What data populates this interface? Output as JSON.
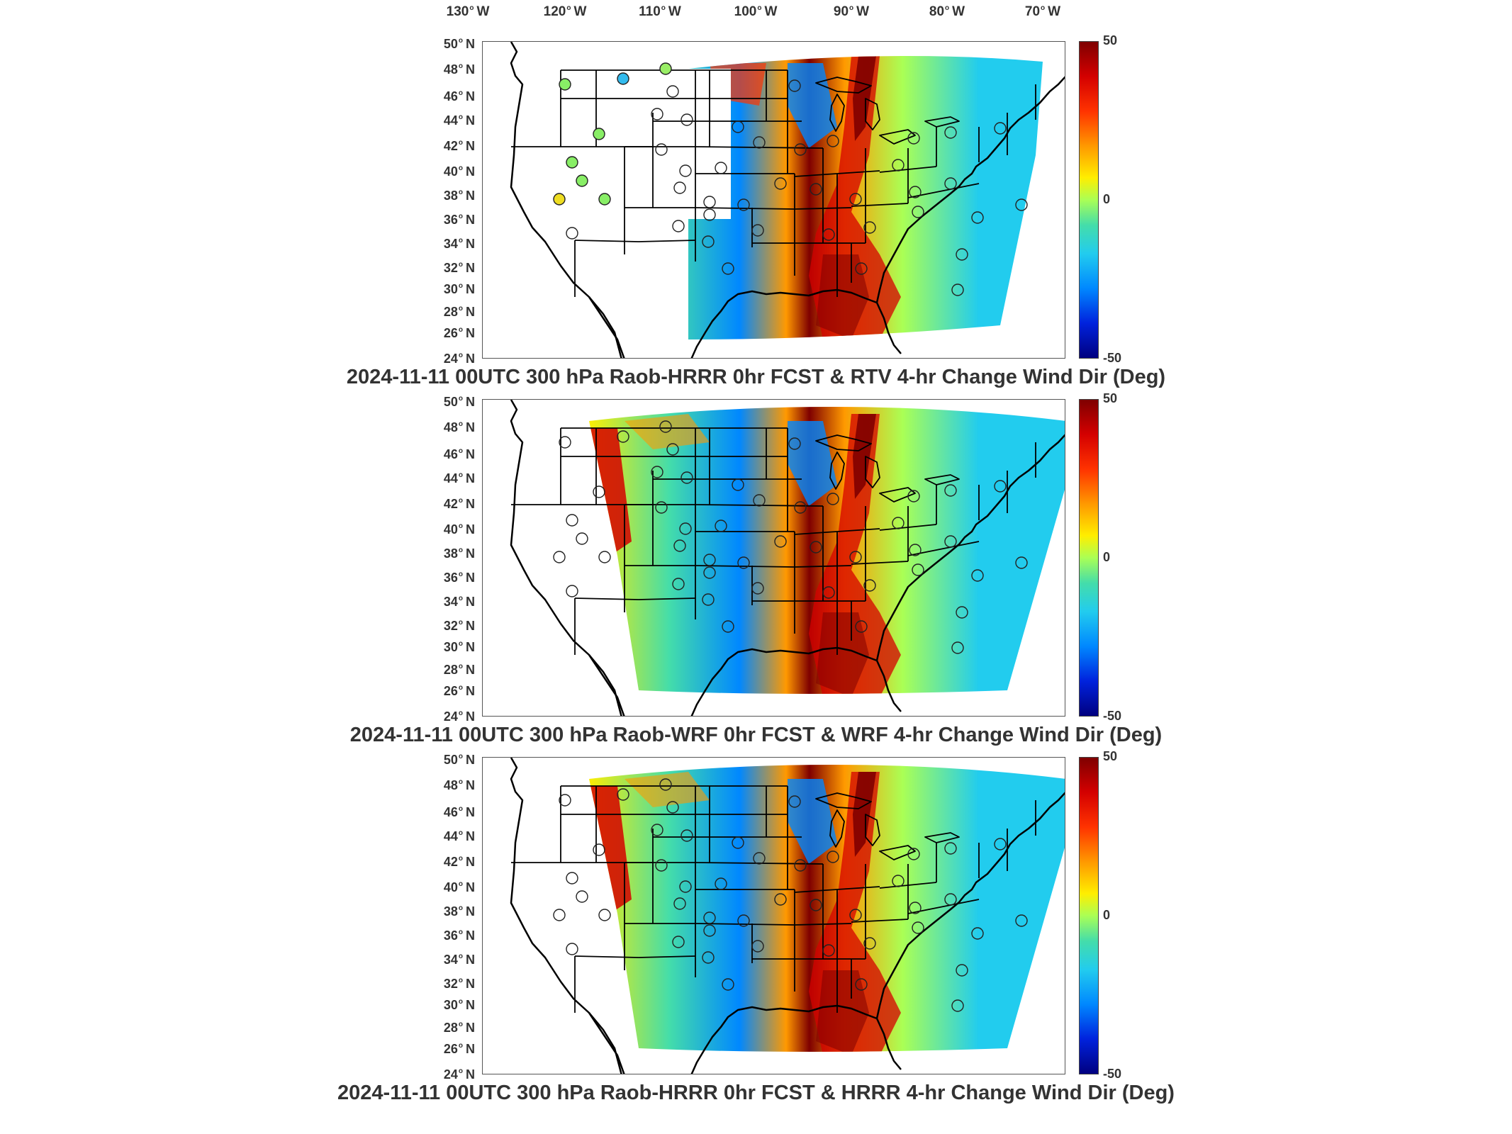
{
  "lon_labels": [
    "130",
    "120",
    "110",
    "100",
    "90",
    "80",
    "70"
  ],
  "lon_suffix": "W",
  "lat_labels": [
    "50",
    "48",
    "46",
    "44",
    "42",
    "40",
    "38",
    "36",
    "34",
    "32",
    "30",
    "28",
    "26",
    "24"
  ],
  "lat_suffix": "N",
  "colorbar": {
    "max": "50",
    "mid": "0",
    "min": "-50",
    "colors": [
      "#7f0000",
      "#d40000",
      "#ff3300",
      "#ff9900",
      "#ffee00",
      "#aaff55",
      "#44ddaa",
      "#22ccee",
      "#0088ff",
      "#0022dd",
      "#000080"
    ]
  },
  "panels": [
    {
      "title": "2024-11-11 00UTC 300 hPa Raob-HRRR 0hr FCST & RTV 4-hr Change Wind Dir (Deg)",
      "coverage": "partial",
      "station_fills": [
        "#33bbee",
        "#99ee66",
        "#88ee66",
        "#88ee66",
        "#88ee66",
        "#eedd22",
        "#88ee66",
        "#88ee66"
      ]
    },
    {
      "title": "2024-11-11 00UTC 300 hPa Raob-WRF 0hr FCST & WRF 4-hr Change Wind Dir (Deg)",
      "coverage": "full",
      "station_fills": []
    },
    {
      "title": "2024-11-11 00UTC 300 hPa Raob-HRRR 0hr FCST & HRRR 4-hr Change Wind Dir (Deg)",
      "coverage": "full",
      "station_fills": []
    }
  ]
}
